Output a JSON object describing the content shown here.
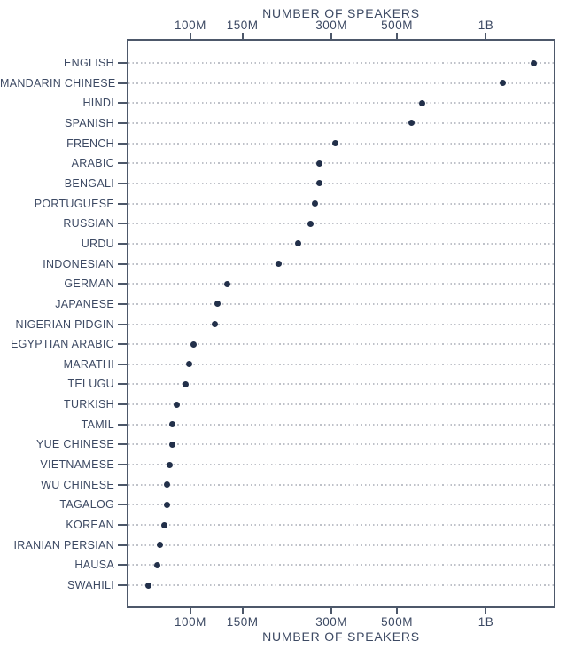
{
  "colors": {
    "background": "#ffffff",
    "text": "#3c4963",
    "frame": "#4d586a",
    "dot": "#22304a",
    "leader": "#bfc2c9"
  },
  "chart_data": {
    "type": "scatter",
    "variant": "horizontal-dot-plot",
    "title": "NUMBER OF SPEAKERS",
    "xlabel": "NUMBER OF SPEAKERS",
    "x_scale": "log",
    "x_range": [
      61700000,
      1696000000
    ],
    "x_ticks": [
      {
        "label": "100M",
        "value": 100000000
      },
      {
        "label": "150M",
        "value": 150000000
      },
      {
        "label": "300M",
        "value": 300000000
      },
      {
        "label": "500M",
        "value": 500000000
      },
      {
        "label": "1B",
        "value": 1000000000
      }
    ],
    "grid": "dotted horizontal leader line per row, no vertical gridlines",
    "legend": "none",
    "axis_mirrored": "ticks and labels on both top and bottom",
    "categories": [
      "ENGLISH",
      "MANDARIN CHINESE",
      "HINDI",
      "SPANISH",
      "FRENCH",
      "ARABIC",
      "BENGALI",
      "PORTUGUESE",
      "RUSSIAN",
      "URDU",
      "INDONESIAN",
      "GERMAN",
      "JAPANESE",
      "NIGERIAN PIDGIN",
      "EGYPTIAN ARABIC",
      "MARATHI",
      "TELUGU",
      "TURKISH",
      "TAMIL",
      "YUE CHINESE",
      "VIETNAMESE",
      "WU CHINESE",
      "TAGALOG",
      "KOREAN",
      "IRANIAN PERSIAN",
      "HAUSA",
      "SWAHILI"
    ],
    "values": [
      1456000000,
      1138000000,
      609500000,
      559100000,
      309800000,
      274000000,
      272800000,
      263600000,
      255000000,
      231700000,
      199100000,
      133200000,
      123400000,
      120700000,
      102400000,
      99200000,
      96000000,
      90000000,
      86600000,
      86600000,
      85300000,
      83400000,
      83100000,
      81700000,
      78600000,
      77300000,
      71900000
    ]
  }
}
